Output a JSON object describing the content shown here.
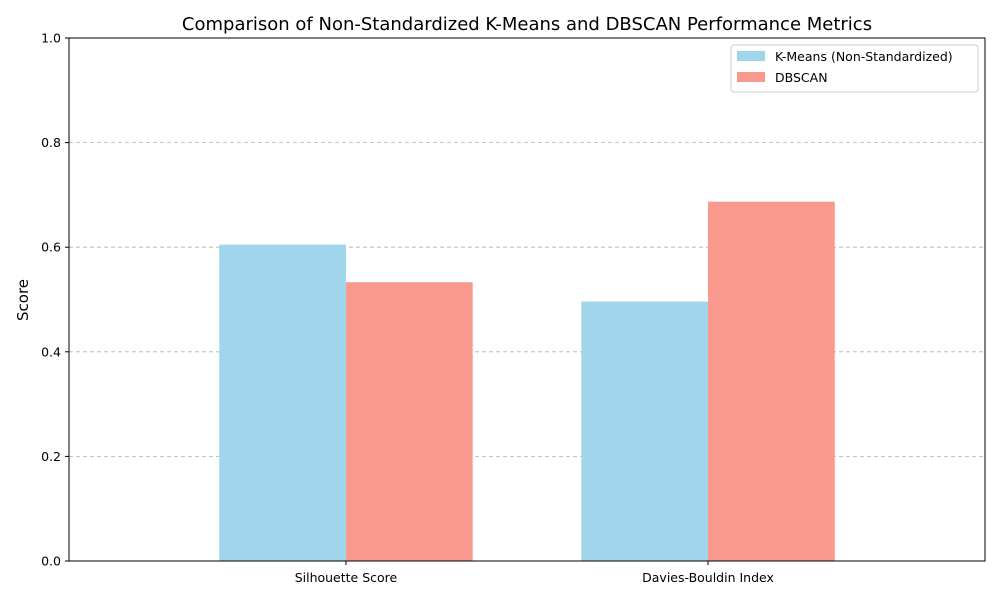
{
  "chart_data": {
    "type": "bar",
    "title": "Comparison of Non-Standardized K-Means and DBSCAN Performance Metrics",
    "xlabel": "",
    "ylabel": "Score",
    "categories": [
      "Silhouette Score",
      "Davies-Bouldin Index"
    ],
    "series": [
      {
        "name": "K-Means (Non-Standardized)",
        "values": [
          0.605,
          0.496
        ],
        "color": "#a0d6eb"
      },
      {
        "name": "DBSCAN",
        "values": [
          0.533,
          0.687
        ],
        "color": "#f9998d"
      }
    ],
    "ylim": [
      0,
      1
    ],
    "yticks": [
      "0.0",
      "0.2",
      "0.4",
      "0.6",
      "0.8",
      "1.0"
    ],
    "grid": "y-dashed",
    "legend_position": "top-right"
  }
}
